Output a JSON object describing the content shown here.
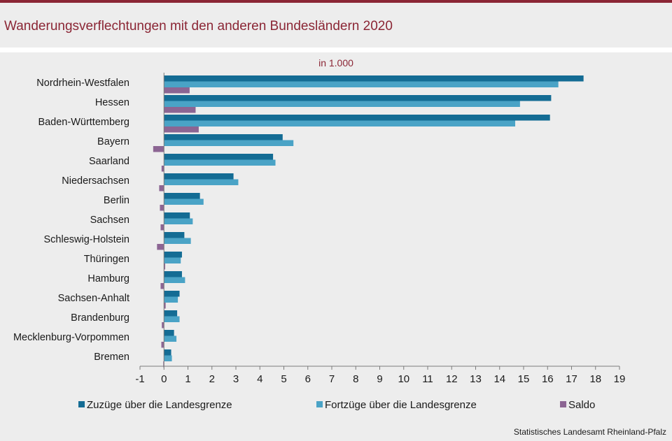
{
  "header": {
    "title": "Wanderungsverflechtungen mit den anderen Bundesländern 2020"
  },
  "footer": {
    "source": "Statistisches Landesamt Rheinland-Pfalz"
  },
  "colors": {
    "zuzuege": "#146c94",
    "fortzuege": "#4aa3c6",
    "saldo": "#8c6593",
    "title": "#8b2635"
  },
  "chart_data": {
    "type": "bar",
    "orientation": "horizontal",
    "title": "Wanderungsverflechtungen mit den anderen Bundesländern 2020",
    "unit": "in 1.000",
    "xlim": [
      -1,
      19
    ],
    "xticks": [
      "-1",
      "0",
      "1",
      "2",
      "3",
      "4",
      "5",
      "6",
      "7",
      "8",
      "9",
      "10",
      "11",
      "12",
      "13",
      "14",
      "15",
      "16",
      "17",
      "18",
      "19"
    ],
    "categories": [
      "Nordrhein-Westfalen",
      "Hessen",
      "Baden-Württemberg",
      "Bayern",
      "Saarland",
      "Niedersachsen",
      "Berlin",
      "Sachsen",
      "Schleswig-Holstein",
      "Thüringen",
      "Hamburg",
      "Sachsen-Anhalt",
      "Brandenburg",
      "Mecklenburg-Vorpommen",
      "Bremen"
    ],
    "series": [
      {
        "key": "zuzuege",
        "name": "Zuzüge über die Landesgrenze",
        "values": [
          17.5,
          16.15,
          16.1,
          4.95,
          4.55,
          2.9,
          1.5,
          1.08,
          0.85,
          0.75,
          0.75,
          0.65,
          0.55,
          0.42,
          0.3
        ]
      },
      {
        "key": "fortzuege",
        "name": "Fortzüge über die Landesgrenze",
        "values": [
          16.45,
          14.85,
          14.65,
          5.4,
          4.65,
          3.1,
          1.65,
          1.2,
          1.12,
          0.7,
          0.88,
          0.58,
          0.65,
          0.52,
          0.33
        ]
      },
      {
        "key": "saldo",
        "name": "Saldo",
        "values": [
          1.07,
          1.32,
          1.45,
          -0.45,
          -0.1,
          -0.2,
          -0.17,
          -0.14,
          -0.29,
          0.05,
          -0.14,
          0.07,
          -0.09,
          -0.11,
          -0.03
        ]
      }
    ],
    "legend_position": "bottom",
    "grid": false
  }
}
